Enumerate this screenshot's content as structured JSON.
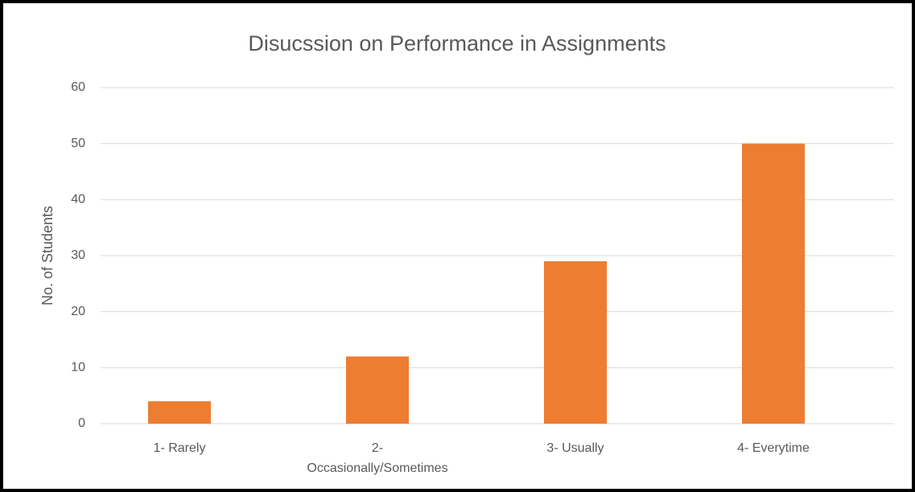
{
  "chart_data": {
    "type": "bar",
    "title": "Disucssion on Performance in Assignments",
    "y_label": "No. of Students",
    "categories": [
      "1- Rarely",
      "2- Occasionally/Sometimes",
      "3- Usually",
      "4- Everytime"
    ],
    "values": [
      4,
      12,
      29,
      50
    ],
    "color": "#ed7d31",
    "ylim": [
      0,
      60
    ],
    "yticks": [
      0,
      10,
      20,
      30,
      40,
      50,
      60
    ],
    "grid": true
  }
}
